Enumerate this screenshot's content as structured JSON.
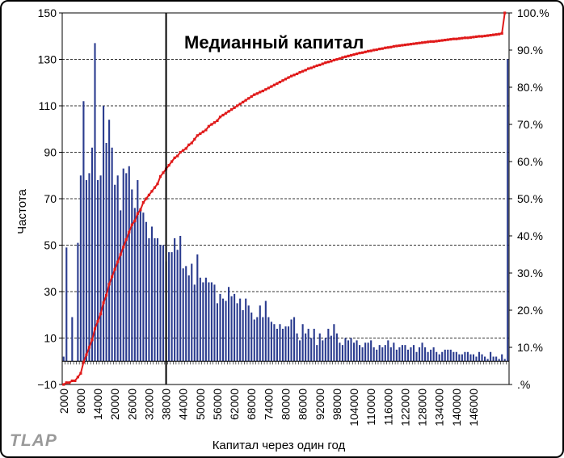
{
  "watermark": "TLAP",
  "chart_data": {
    "type": "bar",
    "title": "",
    "annotation": "Медианный капитал",
    "median_x": 38000,
    "xlabel": "Капитал через один год",
    "ylabel": "Частота",
    "x_min": 2000,
    "x_step": 1000,
    "x_tick_labels": [
      "2000",
      "8000",
      "14000",
      "20000",
      "26000",
      "32000",
      "38000",
      "44000",
      "50000",
      "56000",
      "62000",
      "68000",
      "74000",
      "80000",
      "86000",
      "92000",
      "98000",
      "104000",
      "110000",
      "116000",
      "122000",
      "128000",
      "134000",
      "140000",
      "146000"
    ],
    "y_left_ticks": [
      "150",
      "130",
      "110",
      "90",
      "70",
      "50",
      "30",
      "10",
      "−10"
    ],
    "ylim_left": [
      -10,
      150
    ],
    "y_right_ticks": [
      "100.%",
      "90.%",
      "80.%",
      "70.%",
      "60.%",
      "50.%",
      "40.%",
      "30.%",
      "20.%",
      "10.%",
      ".%"
    ],
    "ylim_right": [
      0,
      100
    ],
    "series": [
      {
        "name": "",
        "axis": "left",
        "values": [
          2,
          49,
          0,
          19,
          0,
          51,
          80,
          112,
          78,
          81,
          92,
          137,
          78,
          80,
          110,
          94,
          104,
          92,
          76,
          80,
          65,
          83,
          81,
          84,
          74,
          66,
          78,
          66,
          64,
          60,
          53,
          58,
          53,
          53,
          50,
          50,
          43,
          47,
          47,
          53,
          48,
          54,
          40,
          41,
          37,
          42,
          33,
          46,
          36,
          34,
          36,
          34,
          34,
          33,
          25,
          29,
          27,
          26,
          32,
          28,
          29,
          25,
          27,
          22,
          27,
          24,
          21,
          18,
          19,
          24,
          19,
          26,
          19,
          17,
          16,
          14,
          16,
          14,
          15,
          15,
          18,
          19,
          12,
          9,
          16,
          12,
          14,
          10,
          14,
          7,
          12,
          9,
          10,
          14,
          11,
          16,
          12,
          8,
          7,
          10,
          9,
          10,
          8,
          9,
          7,
          6,
          8,
          8,
          9,
          6,
          5,
          7,
          6,
          7,
          9,
          6,
          8,
          5,
          6,
          7,
          7,
          5,
          6,
          7,
          4,
          6,
          8,
          6,
          4,
          5,
          6,
          4,
          3,
          4,
          5,
          5,
          5,
          4,
          4,
          3,
          3,
          4,
          4,
          3,
          3,
          2,
          4,
          3,
          2,
          1,
          4,
          2,
          2,
          1,
          3,
          1,
          130
        ]
      },
      {
        "name": "",
        "axis": "right",
        "values": [
          0,
          0.5,
          0.5,
          1,
          1,
          2,
          3,
          6,
          8,
          10,
          12,
          15,
          17,
          19,
          22,
          24,
          27,
          29,
          31,
          33,
          35,
          37,
          39,
          41,
          43,
          44,
          46,
          47,
          49,
          50,
          51,
          52,
          53,
          54,
          56,
          57,
          58,
          59,
          60,
          61,
          61.5,
          62.5,
          63,
          63.5,
          64.5,
          65,
          66,
          67,
          67.5,
          68,
          68.5,
          69.5,
          70,
          70.5,
          71,
          72,
          72.5,
          73,
          73.5,
          74,
          74.5,
          75,
          75.5,
          76,
          76.5,
          77,
          77.5,
          78,
          78.3,
          78.7,
          79,
          79.4,
          79.8,
          80.2,
          80.6,
          81,
          81.4,
          81.8,
          82.2,
          82.6,
          83,
          83.3,
          83.6,
          84,
          84.3,
          84.6,
          85,
          85.2,
          85.5,
          85.8,
          86,
          86.3,
          86.6,
          86.8,
          87,
          87.3,
          87.5,
          87.7,
          88,
          88.2,
          88.4,
          88.6,
          88.8,
          89,
          89.2,
          89.3,
          89.5,
          89.7,
          89.8,
          90,
          90.1,
          90.3,
          90.4,
          90.6,
          90.7,
          90.8,
          91,
          91.1,
          91.2,
          91.3,
          91.4,
          91.5,
          91.6,
          91.7,
          91.8,
          91.9,
          92,
          92.1,
          92.2,
          92.3,
          92.3,
          92.4,
          92.5,
          92.6,
          92.7,
          92.8,
          92.9,
          93,
          93,
          93.1,
          93.2,
          93.3,
          93.3,
          93.4,
          93.5,
          93.6,
          93.7,
          93.7,
          93.8,
          93.9,
          94,
          94.1,
          94.2,
          94.3,
          94.5,
          100
        ]
      }
    ],
    "grid": "horizontal-dashed",
    "legend": "none"
  }
}
